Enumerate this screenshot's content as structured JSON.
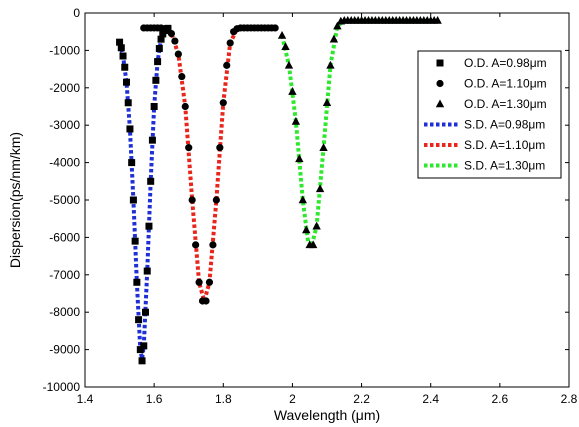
{
  "chart_data": {
    "type": "line",
    "xlabel": "Wavelength (μm)",
    "ylabel": "Dispersion(ps/nm/km)",
    "xlim": [
      1.4,
      2.8
    ],
    "ylim": [
      -10000,
      0
    ],
    "xticks": [
      "1.4",
      "1.6",
      "1.8",
      "2",
      "2.2",
      "2.4",
      "2.6",
      "2.8"
    ],
    "yticks": [
      "-10000",
      "-9000",
      "-8000",
      "-7000",
      "-6000",
      "-5000",
      "-4000",
      "-3000",
      "-2000",
      "-1000",
      "0"
    ],
    "grid": false,
    "legend_position": "top-right",
    "series": [
      {
        "name": "O.D. A=0.98μm",
        "style": "marker",
        "marker": "square",
        "color": "#000000",
        "x": [
          1.5,
          1.505,
          1.51,
          1.515,
          1.52,
          1.525,
          1.53,
          1.535,
          1.54,
          1.545,
          1.55,
          1.555,
          1.56,
          1.565,
          1.57,
          1.575,
          1.58,
          1.585,
          1.59,
          1.595,
          1.6,
          1.605,
          1.61,
          1.615,
          1.62,
          1.625,
          1.63,
          1.635,
          1.64
        ],
        "y": [
          -780,
          -930,
          -1150,
          -1450,
          -1850,
          -2400,
          -3100,
          -4000,
          -5000,
          -6100,
          -7200,
          -8200,
          -9000,
          -9300,
          -8900,
          -8000,
          -6900,
          -5700,
          -4500,
          -3400,
          -2500,
          -1800,
          -1300,
          -950,
          -700,
          -560,
          -470,
          -430,
          -410
        ]
      },
      {
        "name": "O.D. A=1.10μm",
        "style": "marker",
        "marker": "circle",
        "color": "#000000",
        "x": [
          1.57,
          1.58,
          1.59,
          1.6,
          1.61,
          1.62,
          1.63,
          1.64,
          1.65,
          1.66,
          1.67,
          1.68,
          1.69,
          1.7,
          1.71,
          1.72,
          1.73,
          1.74,
          1.75,
          1.76,
          1.77,
          1.78,
          1.79,
          1.8,
          1.81,
          1.82,
          1.83,
          1.84,
          1.85,
          1.86,
          1.87,
          1.88,
          1.89,
          1.9,
          1.91,
          1.92,
          1.93,
          1.94,
          1.95
        ],
        "y": [
          -400,
          -400,
          -400,
          -400,
          -400,
          -400,
          -420,
          -450,
          -550,
          -750,
          -1100,
          -1700,
          -2500,
          -3600,
          -5000,
          -6200,
          -7200,
          -7700,
          -7700,
          -7200,
          -6200,
          -5000,
          -3600,
          -2400,
          -1400,
          -800,
          -500,
          -420,
          -400,
          -400,
          -400,
          -400,
          -400,
          -400,
          -400,
          -400,
          -400,
          -400,
          -400
        ]
      },
      {
        "name": "O.D. A=1.30μm",
        "style": "marker",
        "marker": "triangle",
        "color": "#000000",
        "x": [
          1.97,
          1.98,
          1.99,
          2.0,
          2.01,
          2.02,
          2.03,
          2.04,
          2.05,
          2.06,
          2.07,
          2.08,
          2.09,
          2.1,
          2.11,
          2.12,
          2.13,
          2.14,
          2.15,
          2.16,
          2.17,
          2.18,
          2.19,
          2.2,
          2.21,
          2.22,
          2.23,
          2.24,
          2.25,
          2.26,
          2.27,
          2.28,
          2.29,
          2.3,
          2.31,
          2.32,
          2.33,
          2.34,
          2.35,
          2.36,
          2.37,
          2.38,
          2.39,
          2.4,
          2.41,
          2.42
        ],
        "y": [
          -600,
          -900,
          -1400,
          -2100,
          -2900,
          -3900,
          -5000,
          -5800,
          -6200,
          -6200,
          -5700,
          -4700,
          -3600,
          -2400,
          -1400,
          -700,
          -350,
          -220,
          -200,
          -200,
          -200,
          -200,
          -200,
          -200,
          -200,
          -200,
          -200,
          -200,
          -200,
          -200,
          -200,
          -200,
          -200,
          -200,
          -200,
          -200,
          -200,
          -200,
          -200,
          -200,
          -200,
          -200,
          -200,
          -200,
          -200,
          -200
        ]
      },
      {
        "name": "S.D. A=0.98μm",
        "style": "dotted-line",
        "color": "#1f2fd6",
        "x": [
          1.5,
          1.51,
          1.52,
          1.53,
          1.54,
          1.55,
          1.56,
          1.565,
          1.57,
          1.58,
          1.59,
          1.6,
          1.61,
          1.62,
          1.63,
          1.64
        ],
        "y": [
          -800,
          -1150,
          -1850,
          -3100,
          -5000,
          -7200,
          -9000,
          -9250,
          -8900,
          -6900,
          -4500,
          -2500,
          -1300,
          -700,
          -470,
          -410
        ]
      },
      {
        "name": "S.D. A=1.10μm",
        "style": "dotted-line",
        "color": "#e8261c",
        "x": [
          1.57,
          1.6,
          1.63,
          1.65,
          1.67,
          1.69,
          1.71,
          1.73,
          1.745,
          1.76,
          1.78,
          1.8,
          1.82,
          1.84,
          1.87,
          1.95
        ],
        "y": [
          -400,
          -400,
          -420,
          -550,
          -1100,
          -2500,
          -5000,
          -7200,
          -7700,
          -7200,
          -5000,
          -2400,
          -800,
          -420,
          -400,
          -400
        ]
      },
      {
        "name": "S.D. A=1.30μm",
        "style": "dotted-line",
        "color": "#2ee82e",
        "x": [
          1.97,
          1.99,
          2.01,
          2.03,
          2.045,
          2.055,
          2.07,
          2.09,
          2.11,
          2.13,
          2.15,
          2.18,
          2.42
        ],
        "y": [
          -600,
          -1400,
          -2900,
          -5000,
          -6100,
          -6250,
          -5700,
          -3600,
          -1400,
          -350,
          -200,
          -200,
          -200
        ]
      }
    ]
  }
}
